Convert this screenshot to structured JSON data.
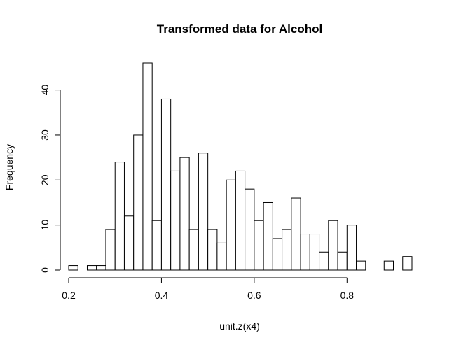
{
  "chart_data": {
    "type": "bar",
    "title": "Transformed data for Alcohol",
    "xlabel": "unit.z(x4)",
    "ylabel": "Frequency",
    "bin_width": 0.02,
    "xlim": [
      0.2,
      0.94
    ],
    "ylim": [
      0,
      46
    ],
    "xticks": [
      0.2,
      0.4,
      0.6,
      0.8
    ],
    "xtick_labels": [
      "0.2",
      "0.4",
      "0.6",
      "0.8"
    ],
    "yticks": [
      0,
      10,
      20,
      30,
      40
    ],
    "ytick_labels": [
      "0",
      "10",
      "20",
      "30",
      "40"
    ],
    "bins": [
      {
        "x0": 0.2,
        "x1": 0.22,
        "count": 1
      },
      {
        "x0": 0.22,
        "x1": 0.24,
        "count": 0
      },
      {
        "x0": 0.24,
        "x1": 0.26,
        "count": 1
      },
      {
        "x0": 0.26,
        "x1": 0.28,
        "count": 1
      },
      {
        "x0": 0.28,
        "x1": 0.3,
        "count": 9
      },
      {
        "x0": 0.3,
        "x1": 0.32,
        "count": 24
      },
      {
        "x0": 0.32,
        "x1": 0.34,
        "count": 12
      },
      {
        "x0": 0.34,
        "x1": 0.36,
        "count": 30
      },
      {
        "x0": 0.36,
        "x1": 0.38,
        "count": 46
      },
      {
        "x0": 0.38,
        "x1": 0.4,
        "count": 11
      },
      {
        "x0": 0.4,
        "x1": 0.42,
        "count": 38
      },
      {
        "x0": 0.42,
        "x1": 0.44,
        "count": 22
      },
      {
        "x0": 0.44,
        "x1": 0.46,
        "count": 25
      },
      {
        "x0": 0.46,
        "x1": 0.48,
        "count": 9
      },
      {
        "x0": 0.48,
        "x1": 0.5,
        "count": 26
      },
      {
        "x0": 0.5,
        "x1": 0.52,
        "count": 9
      },
      {
        "x0": 0.52,
        "x1": 0.54,
        "count": 6
      },
      {
        "x0": 0.54,
        "x1": 0.56,
        "count": 20
      },
      {
        "x0": 0.56,
        "x1": 0.58,
        "count": 22
      },
      {
        "x0": 0.58,
        "x1": 0.6,
        "count": 18
      },
      {
        "x0": 0.6,
        "x1": 0.62,
        "count": 11
      },
      {
        "x0": 0.62,
        "x1": 0.64,
        "count": 15
      },
      {
        "x0": 0.64,
        "x1": 0.66,
        "count": 7
      },
      {
        "x0": 0.66,
        "x1": 0.68,
        "count": 9
      },
      {
        "x0": 0.68,
        "x1": 0.7,
        "count": 16
      },
      {
        "x0": 0.7,
        "x1": 0.72,
        "count": 8
      },
      {
        "x0": 0.72,
        "x1": 0.74,
        "count": 8
      },
      {
        "x0": 0.74,
        "x1": 0.76,
        "count": 4
      },
      {
        "x0": 0.76,
        "x1": 0.78,
        "count": 11
      },
      {
        "x0": 0.78,
        "x1": 0.8,
        "count": 4
      },
      {
        "x0": 0.8,
        "x1": 0.82,
        "count": 10
      },
      {
        "x0": 0.82,
        "x1": 0.84,
        "count": 2
      },
      {
        "x0": 0.84,
        "x1": 0.86,
        "count": 0
      },
      {
        "x0": 0.86,
        "x1": 0.88,
        "count": 0
      },
      {
        "x0": 0.88,
        "x1": 0.9,
        "count": 2
      },
      {
        "x0": 0.9,
        "x1": 0.92,
        "count": 0
      },
      {
        "x0": 0.92,
        "x1": 0.94,
        "count": 3
      }
    ],
    "grid": false,
    "legend": "none",
    "colors": {
      "bar_fill": "#ffffff",
      "bar_stroke": "#000000"
    }
  }
}
